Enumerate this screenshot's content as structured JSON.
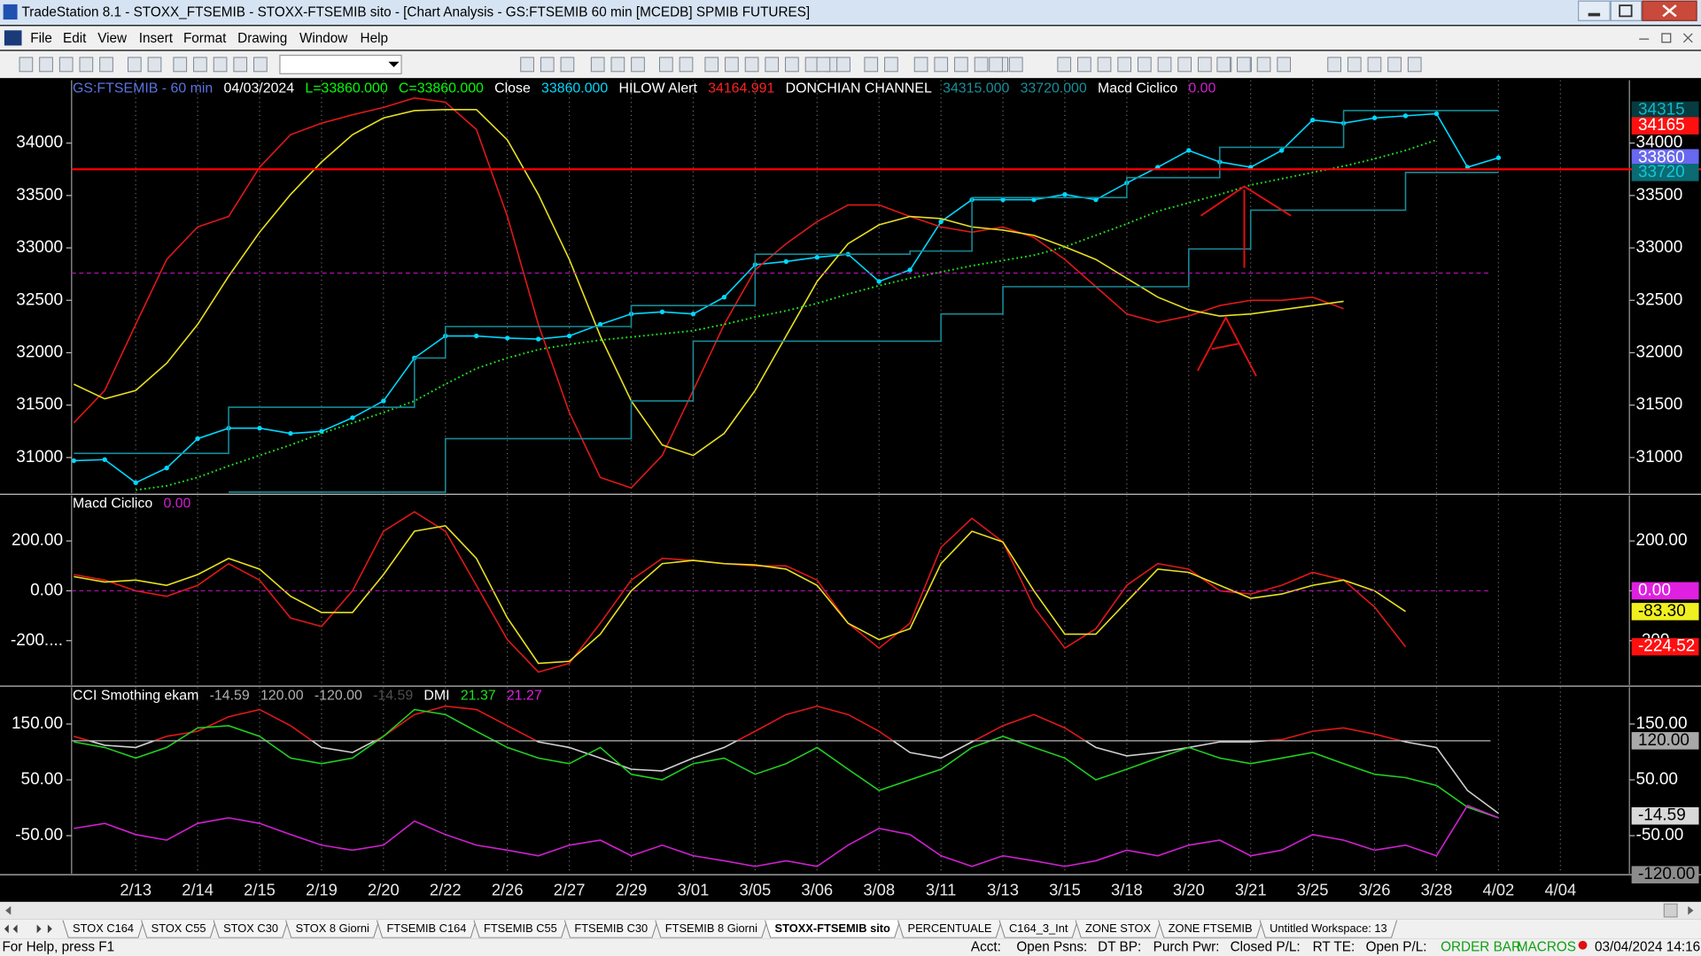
{
  "window": {
    "title": "TradeStation 8.1 - STOXX_FTSEMIB - STOXX-FTSEMIB sito - [Chart Analysis - GS:FTSEMIB  60 min  [MCEDB] SPMIB FUTURES]",
    "menu": [
      "File",
      "Edit",
      "View",
      "Insert",
      "Format",
      "Drawing",
      "Window",
      "Help"
    ],
    "tabs": [
      "STOX C164",
      "STOX C55",
      "STOX  C30",
      "STOX  8 Giorni",
      "FTSEMIB C164",
      "FTSEMIB C55",
      "FTSEMIB C30",
      "FTSEMIB  8 Giorni",
      "STOXX-FTSEMIB sito",
      "PERCENTUALE",
      "C164_3_Int",
      "ZONE STOX",
      "ZONE FTSEMIB",
      "Untitled Workspace:  13"
    ],
    "active_tab": 8,
    "status_bar": {
      "help": "For Help, press F1",
      "fields": [
        "Acct:",
        "Open Psns:",
        "DT BP:",
        "Purch Pwr:",
        "Closed P/L:",
        "RT TE:",
        "Open P/L:"
      ],
      "order_bar": "ORDER BAR",
      "macros": "MACROS",
      "datetime": "03/04/2024 14:16"
    }
  },
  "chart_data": [
    {
      "type": "line",
      "header": [
        {
          "text": "GS:FTSEMIB - 60 min",
          "color": "#5a73e0"
        },
        {
          "text": "04/03/2024",
          "color": "#ffffff"
        },
        {
          "text": "L=33860.000",
          "color": "#00ff00"
        },
        {
          "text": "C=33860.000",
          "color": "#00ff00"
        },
        {
          "text": "Close",
          "color": "#ffffff"
        },
        {
          "text": "33860.000",
          "color": "#00d8ff"
        },
        {
          "text": "HILOW Alert",
          "color": "#ffffff"
        },
        {
          "text": "34164.991",
          "color": "#ff2020"
        },
        {
          "text": "DONCHIAN CHANNEL",
          "color": "#ffffff"
        },
        {
          "text": "34315.000",
          "color": "#1a8f9c"
        },
        {
          "text": "33720.000",
          "color": "#1a8f9c"
        },
        {
          "text": "Macd Ciclico",
          "color": "#ffffff"
        },
        {
          "text": "0.00",
          "color": "#d020d0"
        }
      ],
      "ylim": [
        30660,
        34600
      ],
      "yticks": [
        31000,
        31500,
        32000,
        32500,
        33000,
        33500,
        34000
      ],
      "series": [
        {
          "color": "#00d8ff",
          "markers": true,
          "values": [
            30970,
            30980,
            30760,
            30900,
            31180,
            31280,
            31280,
            31230,
            31250,
            31380,
            31540,
            31950,
            32160,
            32160,
            32140,
            32130,
            32160,
            32270,
            32370,
            32390,
            32370,
            32530,
            32840,
            32870,
            32910,
            32940,
            32680,
            32790,
            33250,
            33460,
            33460,
            33460,
            33510,
            33460,
            33620,
            33770,
            33930,
            33820,
            33770,
            33930,
            34220,
            34190,
            34240,
            34260,
            34280,
            33770,
            33860,
            null,
            null
          ]
        },
        {
          "color": "#e01818",
          "values": [
            31330,
            31640,
            32270,
            32890,
            33200,
            33300,
            33770,
            34080,
            34190,
            34270,
            34340,
            34430,
            34390,
            34130,
            33300,
            32270,
            31430,
            30810,
            30710,
            31020,
            31640,
            32270,
            32790,
            33040,
            33250,
            33410,
            33410,
            33300,
            33200,
            33150,
            33200,
            33100,
            32890,
            32630,
            32370,
            32290,
            32350,
            32450,
            32500,
            32500,
            32530,
            32420,
            null,
            null,
            null,
            null,
            null,
            null,
            null
          ]
        },
        {
          "color": "#e8e020",
          "values": [
            31700,
            31560,
            31640,
            31900,
            32270,
            32730,
            33150,
            33510,
            33820,
            34080,
            34240,
            34310,
            34320,
            34320,
            34030,
            33510,
            32890,
            32160,
            31540,
            31120,
            31020,
            31230,
            31640,
            32160,
            32680,
            33040,
            33220,
            33300,
            33280,
            33200,
            33170,
            33120,
            33010,
            32890,
            32710,
            32530,
            32410,
            32350,
            32370,
            32410,
            32450,
            32490,
            null,
            null,
            null,
            null,
            null,
            null,
            null
          ]
        },
        {
          "color": "#20e020",
          "dash": "dotted",
          "values": [
            null,
            null,
            30690,
            30730,
            30810,
            30920,
            31020,
            31120,
            31230,
            31330,
            31430,
            31540,
            31700,
            31850,
            31950,
            32030,
            32080,
            32120,
            32150,
            32180,
            32210,
            32270,
            32340,
            32400,
            32470,
            32560,
            32640,
            32710,
            32770,
            32830,
            32880,
            32930,
            33010,
            33120,
            33230,
            33350,
            33430,
            33510,
            33600,
            33660,
            33720,
            33780,
            33850,
            33930,
            34030,
            null,
            null,
            null,
            null
          ]
        },
        {
          "color": "#178a96",
          "step": true,
          "values": [
            31040,
            31040,
            31040,
            31040,
            31040,
            31480,
            31480,
            31480,
            31480,
            31480,
            31480,
            31950,
            32250,
            32250,
            32250,
            32250,
            32250,
            32250,
            32450,
            32450,
            32450,
            32450,
            32940,
            32940,
            32940,
            32940,
            32940,
            32970,
            32970,
            33480,
            33480,
            33480,
            33480,
            33480,
            33670,
            33670,
            33670,
            33960,
            33960,
            33960,
            33960,
            34310,
            34310,
            34310,
            34310,
            34310,
            34310,
            null,
            null
          ]
        },
        {
          "color": "#178a96",
          "step": true,
          "values": [
            null,
            null,
            null,
            null,
            null,
            30670,
            30670,
            30670,
            30670,
            30670,
            30670,
            30670,
            31180,
            31180,
            31180,
            31180,
            31180,
            31180,
            31540,
            31540,
            32110,
            32110,
            32110,
            32110,
            32110,
            32110,
            32110,
            32110,
            32370,
            32370,
            32630,
            32630,
            32630,
            32630,
            32630,
            32630,
            32990,
            32990,
            33360,
            33360,
            33360,
            33360,
            33360,
            33720,
            33720,
            33720,
            33720,
            null,
            null
          ]
        }
      ],
      "hlines": [
        {
          "value": 33750,
          "color": "#ff0000",
          "full_width": true
        },
        {
          "value": 32760,
          "color": "#b010b0",
          "dash": "dashed"
        }
      ],
      "tags": [
        {
          "value": 34315,
          "bg": "#063c40",
          "fg": "#10b8c8"
        },
        {
          "value": 34165,
          "bg": "#ff1010",
          "fg": "#ffffff"
        },
        {
          "value": 33860,
          "bg": "#6868f0",
          "fg": "#ffffff"
        },
        {
          "value": 33720,
          "bg": "#0b6a72",
          "fg": "#10c8d8"
        }
      ],
      "xgrid": true
    },
    {
      "type": "line",
      "header": [
        {
          "text": "Macd Ciclico",
          "color": "#ffffff"
        },
        {
          "text": "0.00",
          "color": "#d020d0"
        }
      ],
      "ylim": [
        -378,
        383
      ],
      "yticks": [
        {
          "value": -200,
          "label": "-200...."
        },
        {
          "value": 0,
          "label": "0.00"
        },
        {
          "value": 200,
          "label": "200.00"
        }
      ],
      "series": [
        {
          "color": "#e01818",
          "values": [
            65,
            43,
            0,
            -22,
            22,
            109,
            43,
            -109,
            -143,
            0,
            239,
            317,
            239,
            22,
            -196,
            -326,
            -291,
            -130,
            43,
            130,
            122,
            109,
            100,
            100,
            43,
            -130,
            -230,
            -130,
            174,
            291,
            196,
            -65,
            -230,
            -152,
            22,
            109,
            87,
            0,
            -13,
            22,
            74,
            43,
            -65,
            -225,
            null,
            null,
            null,
            null,
            null
          ]
        },
        {
          "color": "#e8e020",
          "values": [
            57,
            35,
            43,
            22,
            65,
            130,
            87,
            -22,
            -87,
            -87,
            65,
            239,
            261,
            130,
            -109,
            -291,
            -283,
            -174,
            0,
            109,
            122,
            109,
            104,
            87,
            22,
            -130,
            -196,
            -152,
            109,
            239,
            196,
            0,
            -174,
            -174,
            -43,
            87,
            74,
            22,
            -30,
            -13,
            22,
            43,
            0,
            -83,
            null,
            null,
            null,
            null,
            null
          ]
        }
      ],
      "hlines": [
        {
          "value": 0,
          "color": "#b010b0",
          "dash": "dashed"
        }
      ],
      "tags": [
        {
          "value": 0,
          "label": "0.00",
          "bg": "#e020e0",
          "fg": "#ffffff"
        },
        {
          "value": -83.3,
          "label": "-83.30",
          "bg": "#f0f020",
          "fg": "#000000"
        },
        {
          "value": -224.52,
          "label": "-224.52",
          "bg": "#ff1010",
          "fg": "#ffffff"
        }
      ],
      "xgrid": true
    },
    {
      "type": "line",
      "header": [
        {
          "text": "CCI Smothing ekam",
          "color": "#ffffff"
        },
        {
          "text": "-14.59",
          "color": "#b0b0b0"
        },
        {
          "text": "120.00",
          "color": "#b0b0b0"
        },
        {
          "text": "-120.00",
          "color": "#b0b0b0"
        },
        {
          "text": "-14.59",
          "color": "#505050"
        },
        {
          "text": "DMI",
          "color": "#ffffff"
        },
        {
          "text": "21.37",
          "color": "#20e020"
        },
        {
          "text": "21.27",
          "color": "#e020e0"
        }
      ],
      "categories": [
        null,
        null,
        "2/13",
        null,
        "2/14",
        null,
        "2/15",
        null,
        "2/19",
        null,
        "2/20",
        null,
        "2/22",
        null,
        "2/26",
        null,
        "2/27",
        null,
        "2/29",
        null,
        "3/01",
        null,
        "3/05",
        null,
        "3/06",
        null,
        "3/08",
        null,
        "3/11",
        null,
        "3/13",
        null,
        "3/15",
        null,
        "3/18",
        null,
        "3/20",
        null,
        "3/21",
        null,
        "3/25",
        null,
        "3/26",
        null,
        "3/28",
        null,
        "4/02",
        null,
        "4/04"
      ],
      "ylim": [
        -118,
        216
      ],
      "yticks": [
        {
          "value": -50,
          "label": "-50.00"
        },
        {
          "value": 50,
          "label": "50.00"
        },
        {
          "value": 150,
          "label": "150.00"
        }
      ],
      "series": [
        {
          "color": "#d0d0d0",
          "above_color": "#e01818",
          "values": [
            128,
            112,
            108,
            128,
            137,
            163,
            176,
            147,
            108,
            99,
            128,
            167,
            182,
            176,
            147,
            118,
            108,
            89,
            69,
            66,
            89,
            108,
            137,
            167,
            182,
            167,
            137,
            99,
            89,
            118,
            147,
            167,
            143,
            108,
            93,
            99,
            108,
            118,
            118,
            122,
            137,
            143,
            132,
            118,
            108,
            31,
            -10,
            null,
            null
          ]
        },
        {
          "color": "#20d020",
          "values": [
            118,
            108,
            89,
            108,
            143,
            147,
            128,
            89,
            79,
            89,
            128,
            176,
            167,
            137,
            108,
            89,
            79,
            108,
            60,
            50,
            79,
            89,
            60,
            79,
            108,
            69,
            31,
            50,
            69,
            108,
            128,
            108,
            89,
            50,
            69,
            89,
            108,
            89,
            79,
            89,
            99,
            79,
            60,
            54,
            40,
            1,
            -18,
            null,
            null
          ]
        },
        {
          "color": "#d020d0",
          "values": [
            -37,
            -28,
            -48,
            -58,
            -28,
            -18,
            -28,
            -48,
            -67,
            -76,
            -67,
            -24,
            -48,
            -67,
            -76,
            -86,
            -67,
            -58,
            -86,
            -67,
            -86,
            -95,
            -105,
            -95,
            -105,
            -67,
            -37,
            -48,
            -86,
            -105,
            -86,
            -95,
            -105,
            -95,
            -76,
            -86,
            -67,
            -58,
            -86,
            -76,
            -48,
            -58,
            -76,
            -67,
            -86,
            4,
            -18,
            null,
            null
          ]
        }
      ],
      "hlines": [
        {
          "value": 120,
          "color": "#b8b8b8"
        }
      ],
      "tags": [
        {
          "value": 120,
          "label": "120.00",
          "bg": "#a8a8a8",
          "fg": "#000000"
        },
        {
          "value": -14.59,
          "label": "-14.59",
          "bg": "#d8d8d8",
          "fg": "#000000"
        },
        {
          "value": -120,
          "label": "-120.00",
          "bg": "#8c8c8c",
          "fg": "#000000"
        }
      ],
      "xgrid": true
    }
  ]
}
